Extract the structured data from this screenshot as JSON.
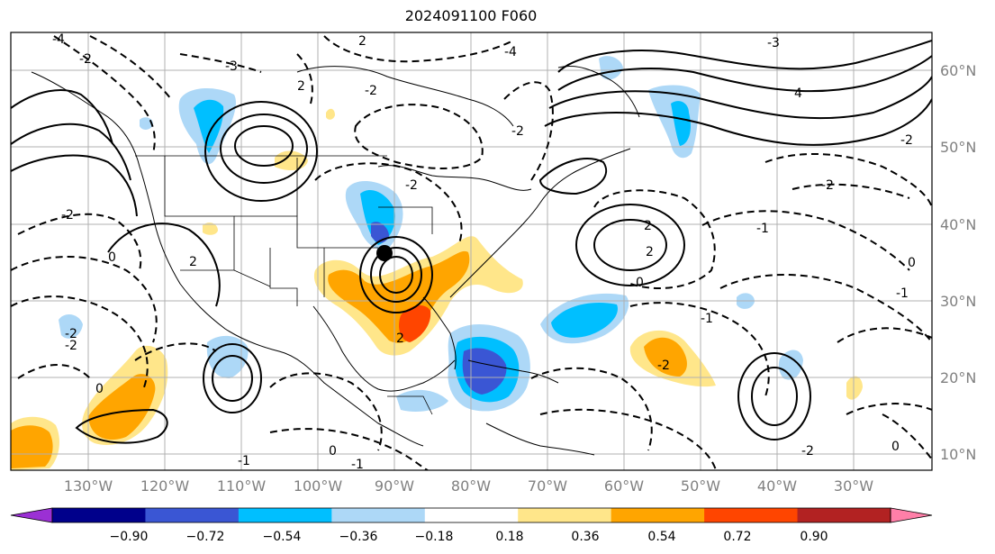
{
  "title": "2024091100 F060",
  "map": {
    "lon_labels": [
      "130°W",
      "120°W",
      "110°W",
      "100°W",
      "90°W",
      "80°W",
      "70°W",
      "60°W",
      "50°W",
      "40°W",
      "30°W"
    ],
    "lat_labels": [
      "60°N",
      "50°N",
      "40°N",
      "30°N",
      "20°N",
      "10°N"
    ],
    "contour_labels": [
      "-4",
      "-2",
      "-3",
      "2",
      "-3",
      "-2",
      "4",
      "2",
      "0",
      "0",
      "-2",
      "-2",
      "-2",
      "-2",
      "-4",
      "0",
      "2",
      "2",
      "-2",
      "-2",
      "-1",
      "-1",
      "-2",
      "0",
      "-1",
      "0",
      "2",
      "-1",
      "-2",
      "0",
      "2",
      "-2",
      "-1"
    ]
  },
  "colorbar": {
    "ticks": [
      "−0.90",
      "−0.72",
      "−0.54",
      "−0.36",
      "−0.18",
      "0.18",
      "0.36",
      "0.54",
      "0.72",
      "0.90"
    ],
    "colors": [
      "#9b30d4",
      "#00008b",
      "#3a56d4",
      "#00bfff",
      "#add8f7",
      "#ffffff",
      "#ffe68a",
      "#ffa500",
      "#ff4500",
      "#b22222",
      "#ff7fa8"
    ]
  }
}
